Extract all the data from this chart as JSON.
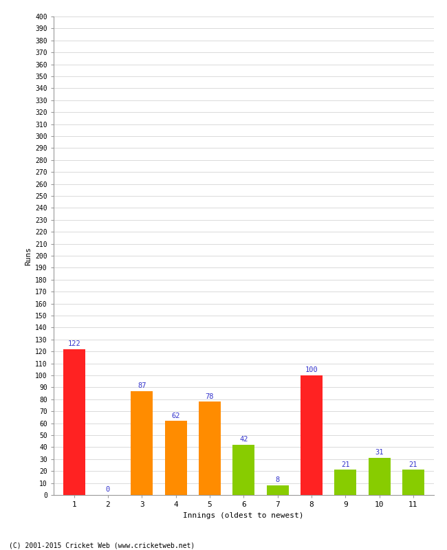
{
  "xlabel": "Innings (oldest to newest)",
  "ylabel": "Runs",
  "categories": [
    1,
    2,
    3,
    4,
    5,
    6,
    7,
    8,
    9,
    10,
    11
  ],
  "values": [
    122,
    0,
    87,
    62,
    78,
    42,
    8,
    100,
    21,
    31,
    21
  ],
  "bar_colors": [
    "#ff2222",
    "#ff8c00",
    "#ff8c00",
    "#ff8c00",
    "#ff8c00",
    "#88cc00",
    "#88cc00",
    "#ff2222",
    "#88cc00",
    "#88cc00",
    "#88cc00"
  ],
  "label_color": "#3333cc",
  "ylim": [
    0,
    400
  ],
  "background_color": "#ffffff",
  "grid_color": "#cccccc",
  "footer": "(C) 2001-2015 Cricket Web (www.cricketweb.net)"
}
